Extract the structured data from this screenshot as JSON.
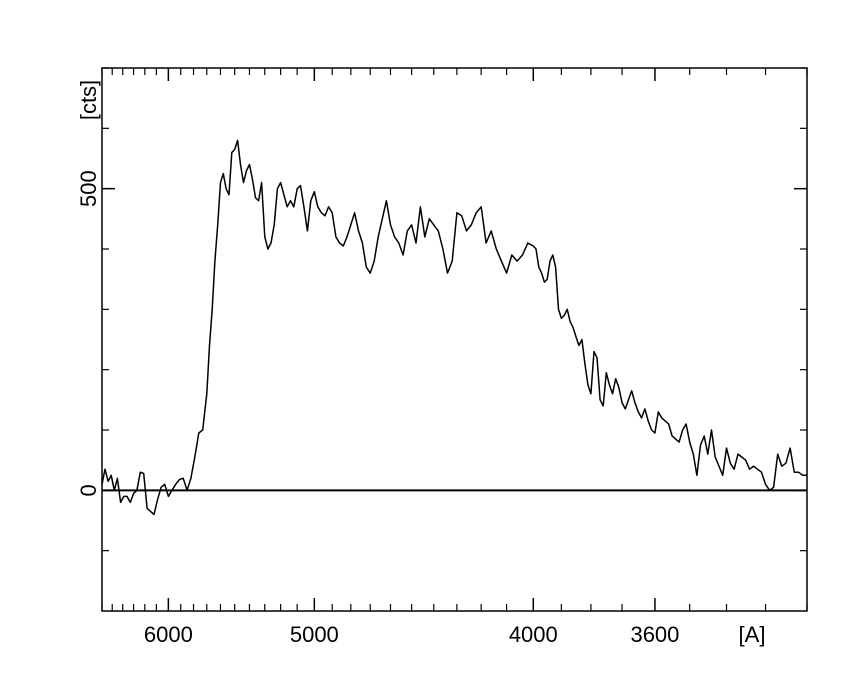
{
  "chart_data": {
    "type": "line",
    "title": "",
    "x_unit_label": "[A]",
    "y_unit_label": "[cts]",
    "x_scale": "reciprocal",
    "x_range": [
      6600,
      3200
    ],
    "y_range": [
      -200,
      700
    ],
    "x_tick_labels": [
      {
        "value": 6000,
        "label": "6000"
      },
      {
        "value": 5000,
        "label": "5000"
      },
      {
        "value": 4000,
        "label": "4000"
      },
      {
        "value": 3600,
        "label": "3600"
      }
    ],
    "y_tick_labels": [
      {
        "value": 0,
        "label": "0"
      },
      {
        "value": 500,
        "label": "500"
      }
    ],
    "reference_line_y": 0,
    "grid": false,
    "legend": "none",
    "line_color": "#000000",
    "series": [
      {
        "x": [
          6600,
          6570,
          6540,
          6510,
          6480,
          6450,
          6420,
          6390,
          6360,
          6330,
          6300,
          6270,
          6240,
          6210,
          6180,
          6150,
          6120,
          6090,
          6060,
          6030,
          6000,
          5970,
          5940,
          5910,
          5880,
          5850,
          5820,
          5790,
          5760,
          5730,
          5700,
          5680,
          5660,
          5640,
          5620,
          5600,
          5580,
          5560,
          5540,
          5520,
          5500,
          5480,
          5460,
          5440,
          5420,
          5400,
          5380,
          5360,
          5340,
          5320,
          5300,
          5280,
          5260,
          5240,
          5220,
          5200,
          5180,
          5160,
          5140,
          5120,
          5100,
          5080,
          5060,
          5040,
          5020,
          5000,
          4980,
          4960,
          4940,
          4920,
          4900,
          4880,
          4860,
          4840,
          4820,
          4800,
          4780,
          4760,
          4740,
          4720,
          4700,
          4680,
          4660,
          4640,
          4620,
          4600,
          4580,
          4560,
          4540,
          4520,
          4500,
          4480,
          4460,
          4440,
          4420,
          4400,
          4380,
          4360,
          4340,
          4320,
          4300,
          4280,
          4260,
          4240,
          4220,
          4200,
          4180,
          4160,
          4140,
          4120,
          4100,
          4080,
          4060,
          4040,
          4020,
          4000,
          3990,
          3980,
          3970,
          3960,
          3950,
          3940,
          3930,
          3920,
          3910,
          3900,
          3890,
          3880,
          3870,
          3860,
          3850,
          3840,
          3830,
          3820,
          3810,
          3800,
          3790,
          3780,
          3770,
          3760,
          3750,
          3740,
          3730,
          3720,
          3710,
          3700,
          3690,
          3680,
          3670,
          3660,
          3650,
          3640,
          3630,
          3620,
          3610,
          3600,
          3590,
          3580,
          3570,
          3560,
          3550,
          3540,
          3530,
          3520,
          3510,
          3500,
          3490,
          3480,
          3470,
          3460,
          3450,
          3440,
          3430,
          3420,
          3410,
          3400,
          3390,
          3380,
          3370,
          3360,
          3350,
          3340,
          3330,
          3320,
          3310,
          3300,
          3290,
          3280,
          3270,
          3260,
          3250,
          3240,
          3230,
          3220,
          3210,
          3200
        ],
        "y": [
          10,
          35,
          15,
          25,
          0,
          20,
          -20,
          -10,
          -10,
          -20,
          -5,
          0,
          30,
          28,
          -30,
          -35,
          -40,
          -15,
          5,
          10,
          -10,
          0,
          10,
          18,
          20,
          0,
          20,
          55,
          95,
          100,
          160,
          240,
          300,
          380,
          440,
          510,
          525,
          500,
          490,
          560,
          565,
          580,
          540,
          510,
          530,
          540,
          515,
          485,
          480,
          510,
          420,
          400,
          410,
          440,
          500,
          510,
          490,
          470,
          480,
          470,
          500,
          505,
          470,
          430,
          480,
          495,
          470,
          460,
          455,
          470,
          460,
          420,
          410,
          405,
          420,
          440,
          460,
          430,
          410,
          370,
          360,
          380,
          420,
          450,
          480,
          440,
          420,
          410,
          390,
          430,
          440,
          410,
          470,
          420,
          450,
          440,
          430,
          400,
          360,
          380,
          460,
          455,
          430,
          440,
          460,
          470,
          410,
          430,
          400,
          380,
          360,
          390,
          380,
          390,
          410,
          405,
          400,
          370,
          360,
          345,
          350,
          380,
          390,
          370,
          300,
          285,
          290,
          300,
          280,
          270,
          255,
          240,
          250,
          210,
          175,
          160,
          230,
          220,
          150,
          140,
          195,
          175,
          160,
          185,
          170,
          145,
          135,
          150,
          165,
          145,
          130,
          120,
          135,
          115,
          100,
          95,
          130,
          120,
          115,
          110,
          90,
          85,
          80,
          100,
          110,
          80,
          60,
          25,
          75,
          90,
          60,
          100,
          55,
          40,
          25,
          70,
          45,
          35,
          60,
          55,
          50,
          35,
          40,
          35,
          30,
          10,
          0,
          5,
          60,
          40,
          45,
          70,
          30,
          30,
          25,
          25
        ]
      }
    ]
  }
}
